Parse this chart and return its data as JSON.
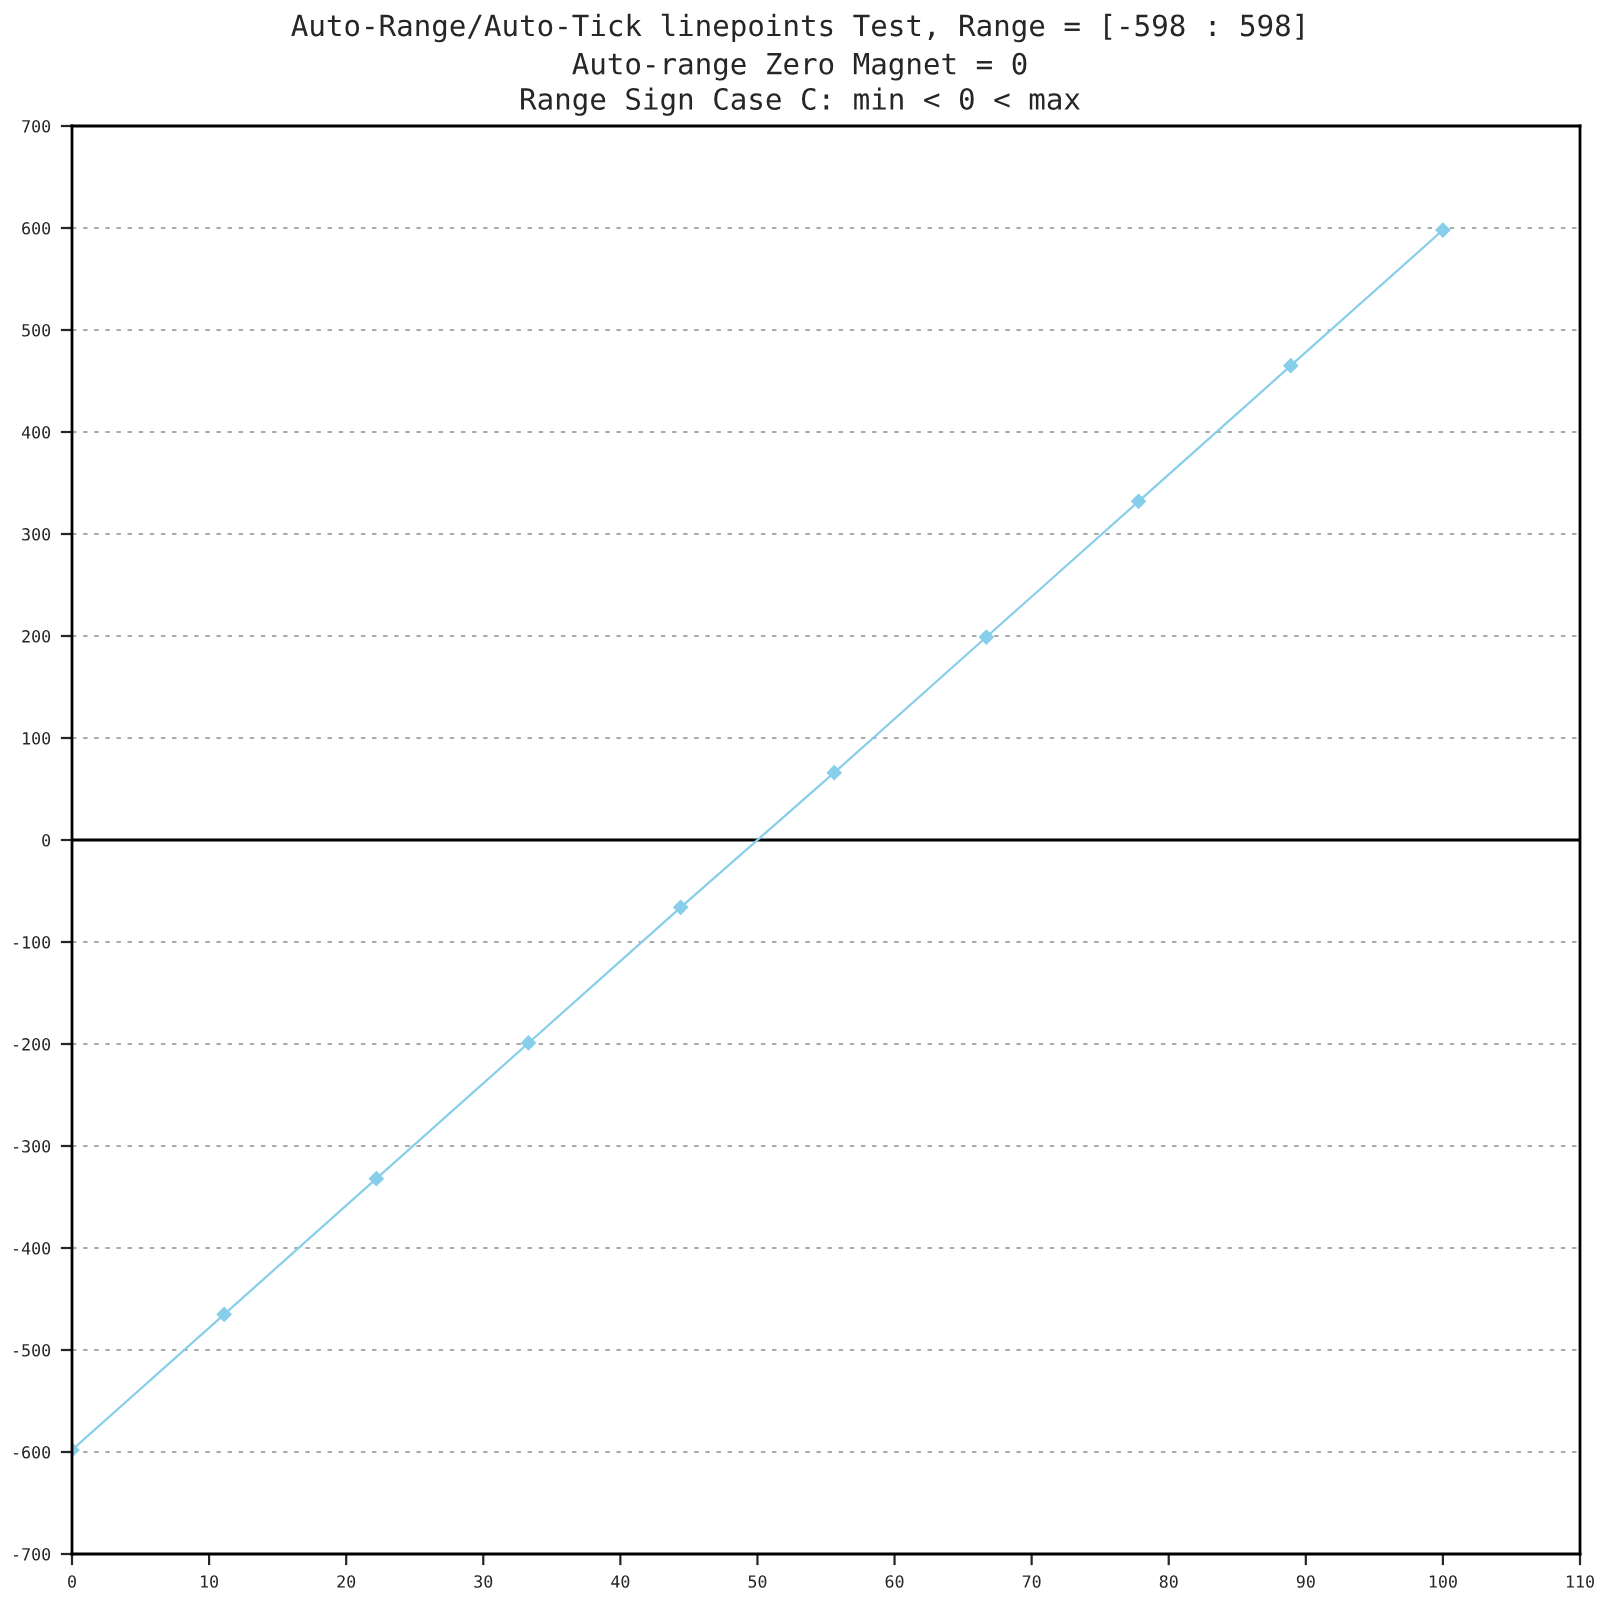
{
  "chart_data": {
    "type": "line",
    "title": "Auto-Range/Auto-Tick linepoints Test, Range = [-598 : 598]",
    "subtitle": "Auto-range Zero Magnet = 0\nRange Sign Case C: min < 0 < max",
    "x": [
      0,
      11.1,
      22.2,
      33.3,
      44.4,
      55.6,
      66.7,
      77.8,
      88.9,
      100
    ],
    "series": [
      {
        "color": "#87ceeb",
        "values": [
          -598,
          -465,
          -332,
          -199,
          -66,
          66,
          199,
          332,
          465,
          598
        ]
      }
    ],
    "xlim": [
      0,
      110
    ],
    "xticks": [
      0,
      10,
      20,
      30,
      40,
      50,
      60,
      70,
      80,
      90,
      100,
      110
    ],
    "ylim": [
      -700,
      700
    ],
    "yticks": [
      -700,
      -600,
      -500,
      -400,
      -300,
      -200,
      -100,
      0,
      100,
      200,
      300,
      400,
      500,
      600,
      700
    ],
    "ref_lines": [
      {
        "axis": "y",
        "value": 0,
        "color": "#000000"
      }
    ],
    "grid": "y",
    "marker": "diamond",
    "line_style": "solid",
    "legend": false
  }
}
